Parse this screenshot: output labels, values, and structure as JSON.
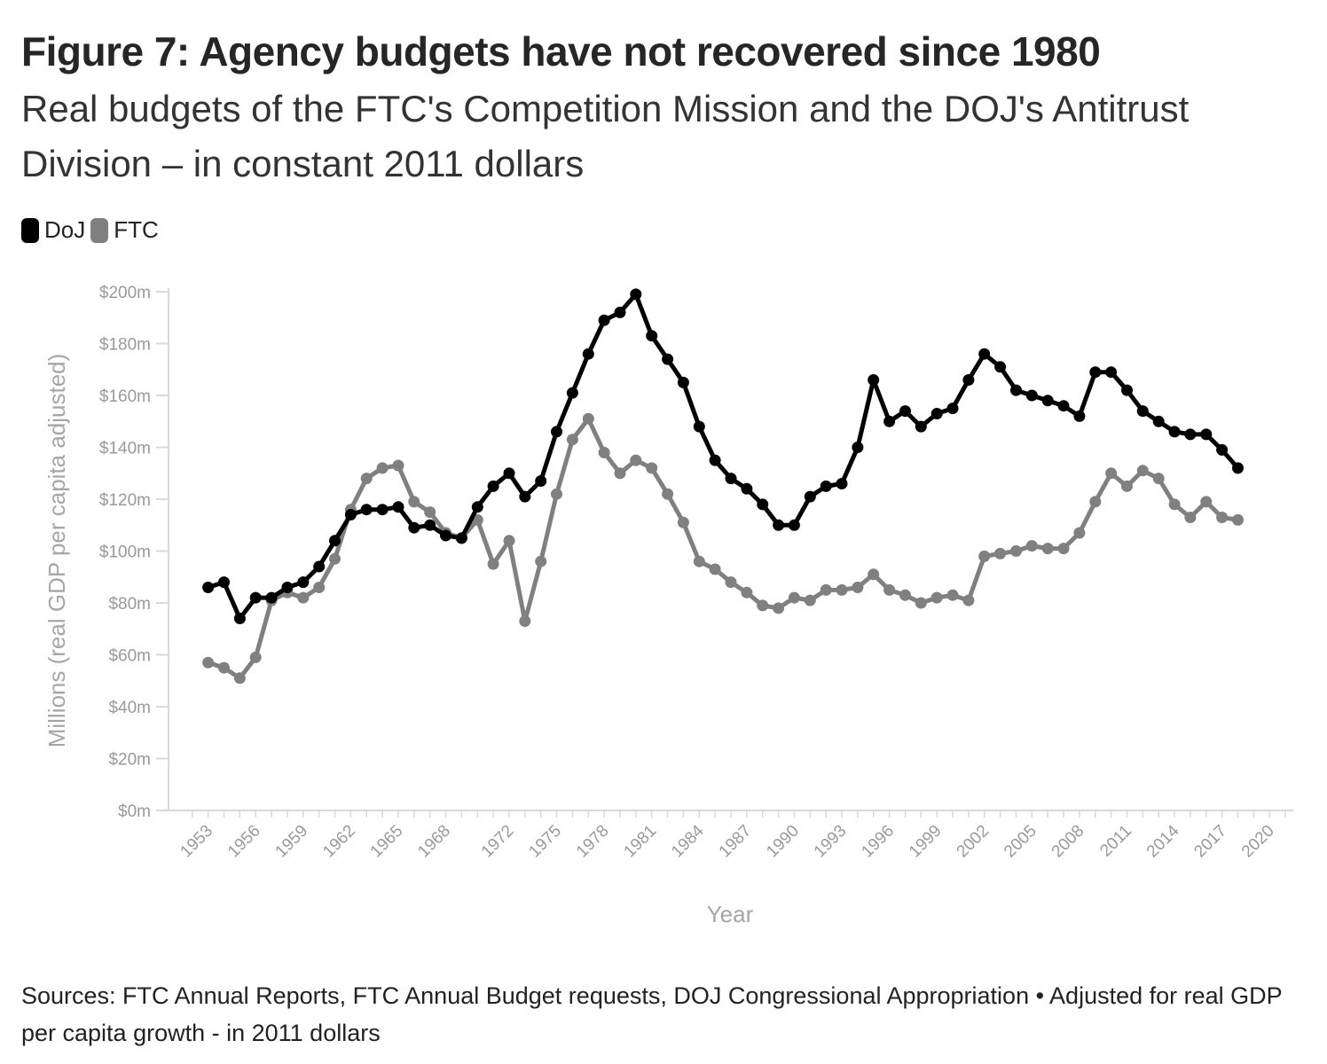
{
  "title": "Figure 7: Agency budgets have not recovered since 1980",
  "subtitle": "Real budgets of the FTC's Competition Mission and the DOJ's Antitrust Division – in constant 2011 dollars",
  "source": "Sources: FTC Annual Reports, FTC Annual Budget requests, DOJ Congressional Appropriation • Adjusted for real GDP per capita growth - in 2011 dollars",
  "colors": {
    "doj": "#000000",
    "ftc": "#808080",
    "axis": "#d8d8d8",
    "label": "#9a9a9a"
  },
  "chart_data": {
    "type": "line",
    "xlabel": "Year",
    "ylabel": "Millions (real GDP per capita adjusted)",
    "xlim": [
      1950.5,
      2021.5
    ],
    "ylim": [
      0,
      200
    ],
    "yticks": [
      0,
      20,
      40,
      60,
      80,
      100,
      120,
      140,
      160,
      180,
      200
    ],
    "ytick_labels": [
      "$0m",
      "$20m",
      "$40m",
      "$60m",
      "$80m",
      "$100m",
      "$120m",
      "$140m",
      "$160m",
      "$180m",
      "$200m"
    ],
    "xtick_labels": [
      "1953",
      "1956",
      "1959",
      "1962",
      "1965",
      "1968",
      "1972",
      "1975",
      "1978",
      "1981",
      "1984",
      "1987",
      "1990",
      "1993",
      "1996",
      "1999",
      "2002",
      "2005",
      "2008",
      "2011",
      "2014",
      "2017",
      "2020"
    ],
    "legend_position": "top-left",
    "grid": false,
    "x": [
      1953,
      1954,
      1955,
      1956,
      1957,
      1958,
      1959,
      1960,
      1961,
      1962,
      1963,
      1964,
      1965,
      1966,
      1967,
      1968,
      1969,
      1970,
      1971,
      1972,
      1973,
      1974,
      1975,
      1976,
      1977,
      1978,
      1979,
      1980,
      1981,
      1982,
      1983,
      1984,
      1985,
      1986,
      1987,
      1988,
      1989,
      1990,
      1991,
      1992,
      1993,
      1994,
      1995,
      1996,
      1997,
      1998,
      1999,
      2000,
      2001,
      2002,
      2003,
      2004,
      2005,
      2006,
      2007,
      2008,
      2009,
      2010,
      2011,
      2012,
      2013,
      2014,
      2015,
      2016,
      2017,
      2018
    ],
    "series": [
      {
        "name": "DoJ",
        "color": "#000000",
        "values": [
          86,
          88,
          74,
          82,
          82,
          86,
          88,
          94,
          104,
          114,
          116,
          116,
          117,
          109,
          110,
          106,
          105,
          117,
          125,
          130,
          121,
          127,
          146,
          161,
          176,
          189,
          192,
          199,
          183,
          174,
          165,
          148,
          135,
          128,
          124,
          118,
          110,
          110,
          121,
          125,
          126,
          140,
          166,
          150,
          154,
          148,
          153,
          155,
          166,
          176,
          171,
          162,
          160,
          158,
          156,
          152,
          169,
          169,
          162,
          154,
          150,
          146,
          145,
          145,
          139,
          132
        ]
      },
      {
        "name": "FTC",
        "color": "#808080",
        "values": [
          57,
          55,
          51,
          59,
          81,
          84,
          82,
          86,
          97,
          116,
          128,
          132,
          133,
          119,
          115,
          107,
          105,
          112,
          95,
          104,
          73,
          96,
          122,
          143,
          151,
          138,
          130,
          135,
          132,
          122,
          111,
          96,
          93,
          88,
          84,
          79,
          78,
          82,
          81,
          85,
          85,
          86,
          91,
          85,
          83,
          80,
          82,
          83,
          81,
          98,
          99,
          100,
          102,
          101,
          101,
          107,
          119,
          130,
          125,
          131,
          128,
          118,
          113,
          119,
          113,
          112
        ]
      }
    ]
  }
}
